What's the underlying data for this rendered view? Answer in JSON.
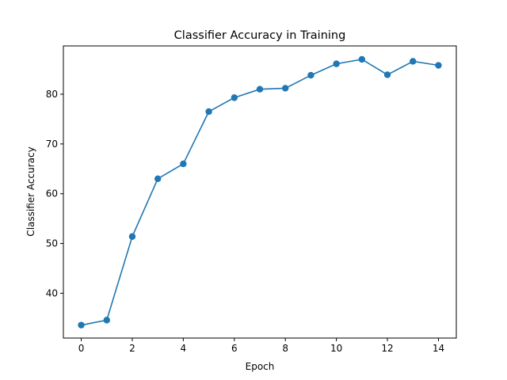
{
  "chart_data": {
    "type": "line",
    "title": "Classifier Accuracy in Training",
    "xlabel": "Epoch",
    "ylabel": "Classifier Accuracy",
    "x": [
      0,
      1,
      2,
      3,
      4,
      5,
      6,
      7,
      8,
      9,
      10,
      11,
      12,
      13,
      14
    ],
    "series": [
      {
        "values": [
          33.6,
          34.6,
          51.4,
          63.0,
          66.0,
          76.5,
          79.3,
          81.0,
          81.2,
          83.8,
          86.1,
          87.0,
          83.9,
          86.6,
          85.8
        ],
        "color": "#1f77b4",
        "marker": "circle"
      }
    ],
    "xlim": [
      -0.7,
      14.7
    ],
    "ylim": [
      31.0,
      89.7
    ],
    "xticks": [
      "0",
      "2",
      "4",
      "6",
      "8",
      "10",
      "12",
      "14"
    ],
    "yticks": [
      "40",
      "50",
      "60",
      "70",
      "80"
    ],
    "grid": false,
    "legend": "none"
  }
}
